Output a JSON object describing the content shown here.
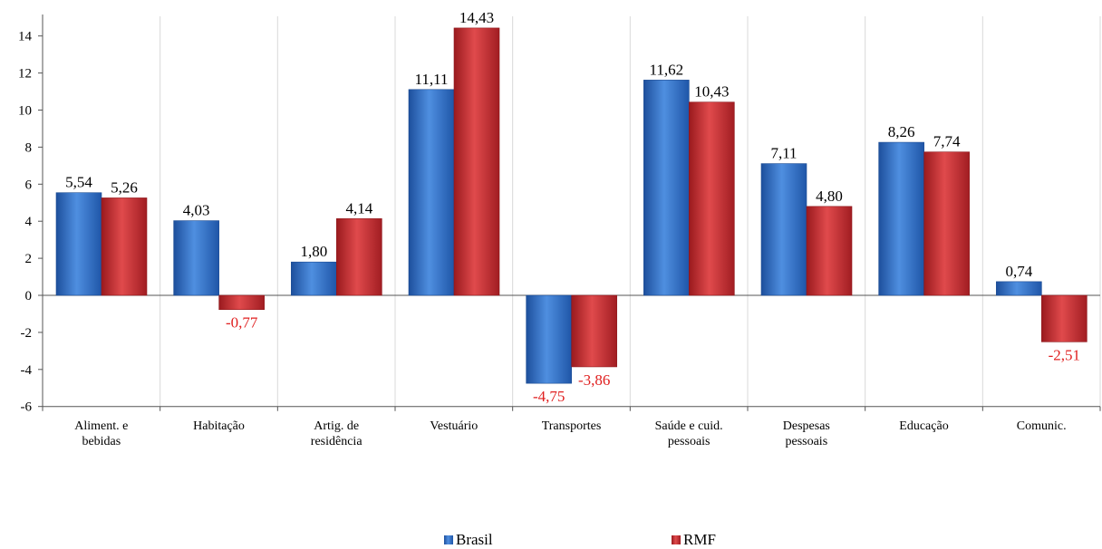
{
  "chart_data": {
    "type": "bar",
    "categories": [
      [
        "Aliment. e",
        "bebidas"
      ],
      [
        "Habitação"
      ],
      [
        "Artig. de",
        "residência"
      ],
      [
        "Vestuário"
      ],
      [
        "Transportes"
      ],
      [
        "Saúde e cuid.",
        "pessoais"
      ],
      [
        "Despesas",
        "pessoais"
      ],
      [
        "Educação"
      ],
      [
        "Comunic."
      ]
    ],
    "series": [
      {
        "name": "Brasil",
        "color": "#2f6fc4",
        "values": [
          5.54,
          4.03,
          1.8,
          11.11,
          -4.75,
          11.62,
          7.11,
          8.26,
          0.74
        ],
        "labels": [
          "5,54",
          "4,03",
          "1,80",
          "11,11",
          "-4,75",
          "11,62",
          "7,11",
          "8,26",
          "0,74"
        ]
      },
      {
        "name": "RMF",
        "color": "#c8282c",
        "values": [
          5.26,
          -0.77,
          4.14,
          14.43,
          -3.86,
          10.43,
          4.8,
          7.74,
          -2.51
        ],
        "labels": [
          "5,26",
          "-0,77",
          "4,14",
          "14,43",
          "-3,86",
          "10,43",
          "4,80",
          "7,74",
          "-2,51"
        ]
      }
    ],
    "yticks": [
      "-6",
      "-4",
      "-2",
      "0",
      "2",
      "4",
      "6",
      "8",
      "10",
      "12",
      "14"
    ],
    "ylim": [
      -6,
      16
    ],
    "negative_label_color": "#e02020",
    "grid": "vertical category separators",
    "legend_position": "bottom-center",
    "title": "",
    "xlabel": "",
    "ylabel": ""
  }
}
